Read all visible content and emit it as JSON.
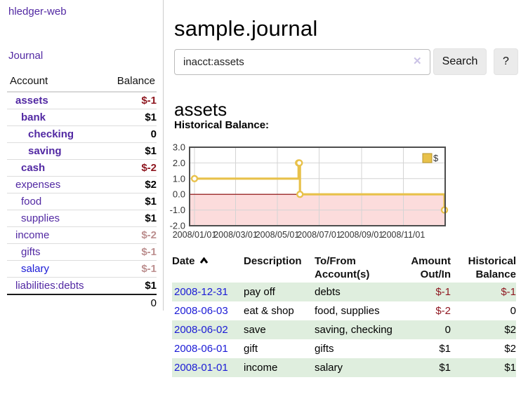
{
  "sidebar": {
    "brand": "hledger-web",
    "journal_link": "Journal",
    "accounts": {
      "header": {
        "account": "Account",
        "balance": "Balance"
      },
      "rows": [
        {
          "name": "assets",
          "balance": "$-1"
        },
        {
          "name": "bank",
          "balance": "$1"
        },
        {
          "name": "checking",
          "balance": "0"
        },
        {
          "name": "saving",
          "balance": "$1"
        },
        {
          "name": "cash",
          "balance": "$-2"
        },
        {
          "name": "expenses",
          "balance": "$2"
        },
        {
          "name": "food",
          "balance": "$1"
        },
        {
          "name": "supplies",
          "balance": "$1"
        },
        {
          "name": "income",
          "balance": "$-2"
        },
        {
          "name": "gifts",
          "balance": "$-1"
        },
        {
          "name": "salary",
          "balance": "$-1"
        },
        {
          "name": "liabilities:debts",
          "balance": "$1"
        }
      ],
      "total": "0"
    }
  },
  "main": {
    "title": "sample.journal",
    "search": {
      "value": "inacct:assets",
      "clear_icon": "✕",
      "search_button": "Search",
      "help_button": "?"
    },
    "account_heading": "assets",
    "chart_title": "Historical Balance:"
  },
  "chart_data": {
    "type": "line",
    "style": "step",
    "title": "Historical Balance",
    "series": [
      {
        "name": "$",
        "points": [
          [
            "2008-01-01",
            1
          ],
          [
            "2008-06-01",
            2
          ],
          [
            "2008-06-02",
            2
          ],
          [
            "2008-06-03",
            0
          ],
          [
            "2008-12-31",
            -1
          ]
        ]
      }
    ],
    "xlim": [
      "2008-01-01",
      "2008-12-31"
    ],
    "ylim": [
      -2,
      3
    ],
    "x_ticks": [
      "2008/01/01",
      "2008/03/01",
      "2008/05/01",
      "2008/07/01",
      "2008/09/01",
      "2008/11/01"
    ],
    "y_ticks": [
      "3.0",
      "2.0",
      "1.0",
      "0.0",
      "-1.0",
      "-2.0"
    ],
    "legend": {
      "label": "$",
      "position": "top-right"
    },
    "grid": true,
    "colors": {
      "line": "#e8c14a",
      "marker_fill": "#ffffff",
      "below_zero_fill": "#fcdcdc",
      "zero_line": "#8b0000",
      "grid": "#d4d4d4",
      "border": "#4d4d4d"
    }
  },
  "register": {
    "headers": {
      "date": "Date",
      "description": "Description",
      "accounts": "To/From Account(s)",
      "amount": "Amount Out/In",
      "balance": "Historical Balance"
    },
    "rows": [
      {
        "date": "2008-12-31",
        "description": "pay off",
        "accounts": "debts",
        "amount": "$-1",
        "balance": "$-1"
      },
      {
        "date": "2008-06-03",
        "description": "eat & shop",
        "accounts": "food, supplies",
        "amount": "$-2",
        "balance": "0"
      },
      {
        "date": "2008-06-02",
        "description": "save",
        "accounts": "saving, checking",
        "amount": "0",
        "balance": "$2"
      },
      {
        "date": "2008-06-01",
        "description": "gift",
        "accounts": "gifts",
        "amount": "$1",
        "balance": "$2"
      },
      {
        "date": "2008-01-01",
        "description": "income",
        "accounts": "salary",
        "amount": "$1",
        "balance": "$1"
      }
    ]
  }
}
